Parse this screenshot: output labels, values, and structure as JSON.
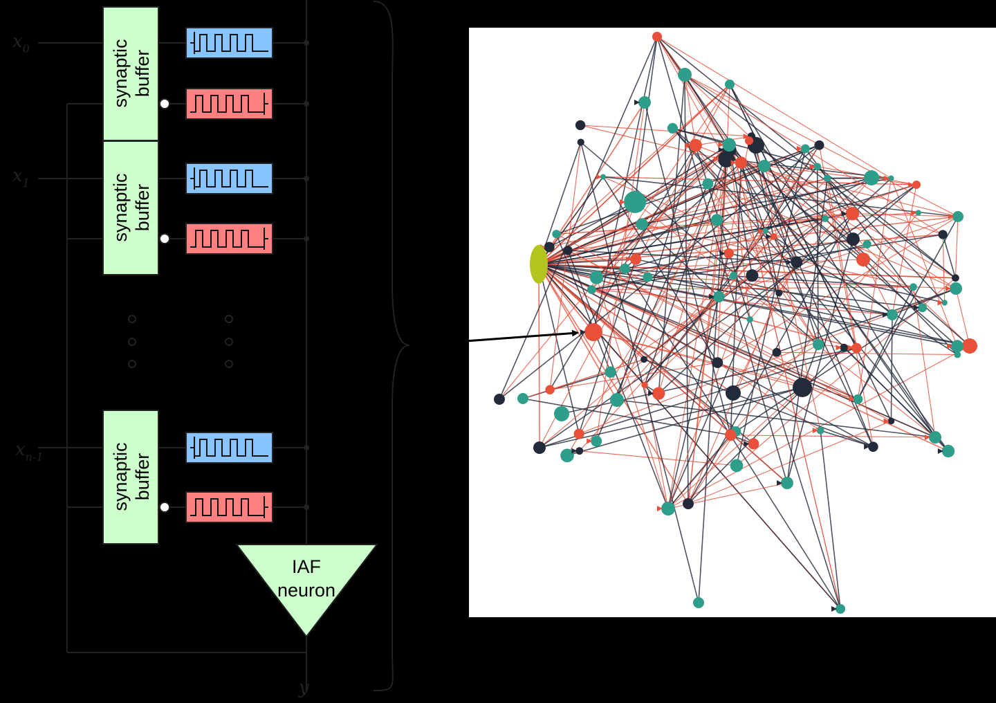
{
  "inputs": {
    "x0": {
      "base": "x",
      "sub": "0"
    },
    "x1": {
      "base": "x",
      "sub": "1"
    },
    "xn1": {
      "base": "x",
      "sub": "n-1"
    }
  },
  "buffers": [
    {
      "line1": "synaptic",
      "line2": "buffer"
    },
    {
      "line1": "synaptic",
      "line2": "buffer"
    },
    {
      "line1": "synaptic",
      "line2": "buffer"
    }
  ],
  "neuron": {
    "line1": "IAF",
    "line2": "neuron"
  },
  "output": {
    "label": "y"
  },
  "colors": {
    "background": "#000000",
    "buffer_fill": "#ccffcc",
    "excitatory_fill": "#88c4ff",
    "inhibitory_fill": "#ff8080",
    "neuron_fill": "#ccffcc",
    "node_teal": "#2e9e8a",
    "node_dark": "#232a3a",
    "edge_red": "#e8503a",
    "source_node": "#b4c41e",
    "network_bg": "#ffffff"
  }
}
